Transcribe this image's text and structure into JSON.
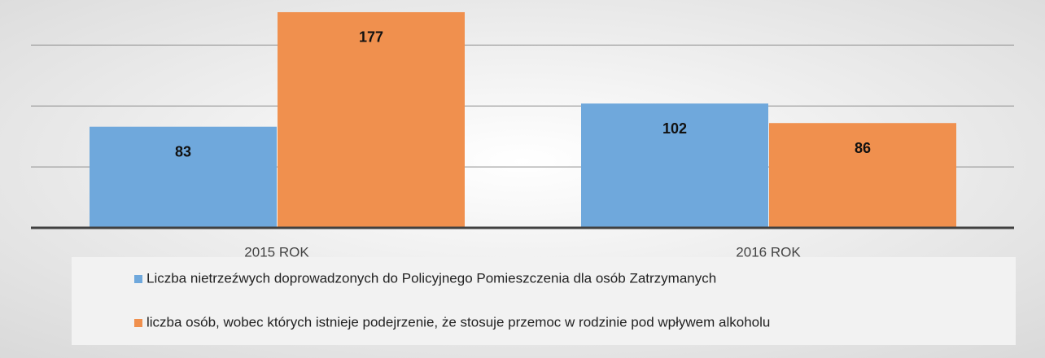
{
  "chart_data": {
    "type": "bar",
    "categories": [
      "2015 ROK",
      "2016 ROK"
    ],
    "series": [
      {
        "name": "Liczba nietrzeźwych doprowadzonych do Policyjnego Pomieszczenia dla osób Zatrzymanych",
        "color": "#6fa8dc",
        "values": [
          83,
          102
        ]
      },
      {
        "name": "liczba osób, wobec których istnieje podejrzenie, że stosuje przemoc w rodzinie pod wpływem alkoholu",
        "color": "#f0904e",
        "values": [
          177,
          86
        ]
      }
    ],
    "ylim": [
      0,
      187
    ],
    "yticks": [
      0,
      50,
      100,
      150
    ],
    "grid": true
  }
}
